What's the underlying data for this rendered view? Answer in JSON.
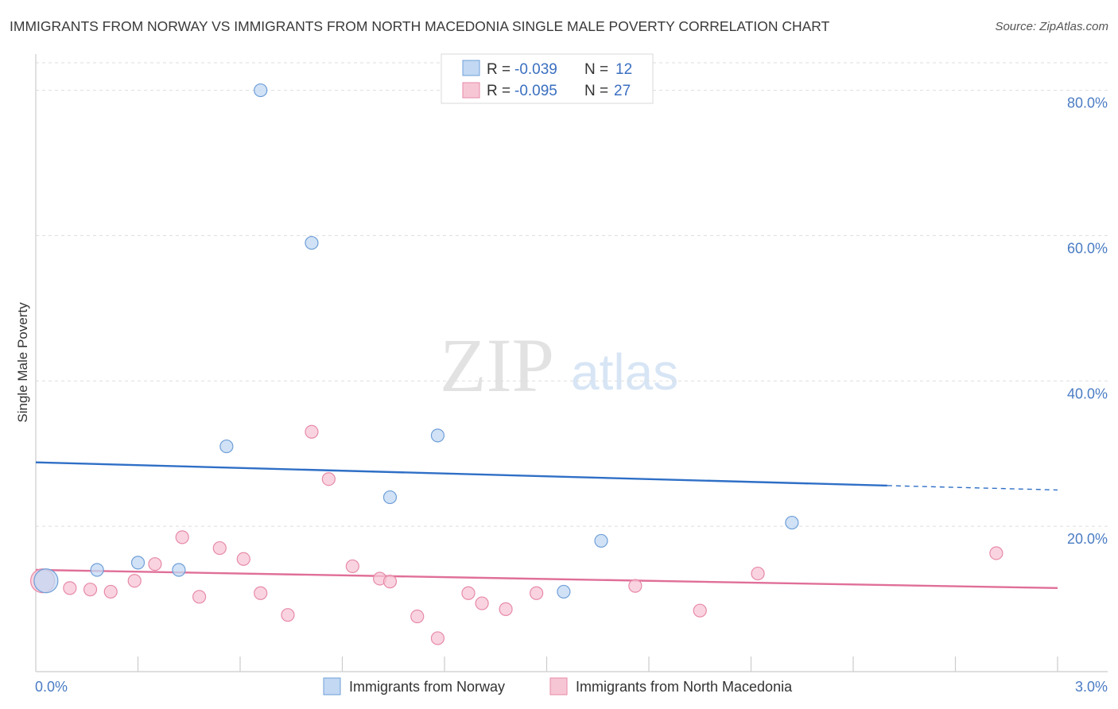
{
  "title": "IMMIGRANTS FROM NORWAY VS IMMIGRANTS FROM NORTH MACEDONIA SINGLE MALE POVERTY CORRELATION CHART",
  "source": "Source: ZipAtlas.com",
  "watermark": {
    "zip": "ZIP",
    "atlas": "atlas"
  },
  "colors": {
    "norway_fill": "#c2d8f3",
    "norway_stroke": "#6f9fd8",
    "norway_line": "#2f6fc6",
    "macedonia_fill": "#f7c6d5",
    "macedonia_stroke": "#e78aa7",
    "macedonia_line": "#e06f98",
    "tick_label": "#4a7cc4",
    "grid": "#dddddd"
  },
  "legend": {
    "rows": [
      {
        "r_label": "R = ",
        "r_value": "-0.039",
        "n_label": "N = ",
        "n_value": "12"
      },
      {
        "r_label": "R = ",
        "r_value": "-0.095",
        "n_label": "N = ",
        "n_value": "27"
      }
    ]
  },
  "chart_data": {
    "type": "scatter",
    "title": "IMMIGRANTS FROM NORWAY VS IMMIGRANTS FROM NORTH MACEDONIA SINGLE MALE POVERTY CORRELATION CHART",
    "xlabel": "",
    "ylabel": "Single Male Poverty",
    "xlim": [
      0,
      3.0
    ],
    "ylim": [
      0,
      84
    ],
    "x_tick_labels": [
      "0.0%",
      "3.0%"
    ],
    "y_ticks": [
      20,
      40,
      60,
      80
    ],
    "y_tick_labels": [
      "20.0%",
      "40.0%",
      "60.0%",
      "80.0%"
    ],
    "grid": true,
    "series": [
      {
        "name": "Immigrants from Norway",
        "points": [
          [
            0.03,
            12.5
          ],
          [
            0.18,
            14
          ],
          [
            0.3,
            15
          ],
          [
            0.42,
            14
          ],
          [
            0.56,
            31
          ],
          [
            0.66,
            80
          ],
          [
            0.81,
            59
          ],
          [
            1.04,
            24
          ],
          [
            1.18,
            32.5
          ],
          [
            1.55,
            11
          ],
          [
            1.66,
            18
          ],
          [
            2.22,
            20.5
          ]
        ],
        "trend": {
          "x0": 0.0,
          "y0": 28.8,
          "x1": 2.5,
          "y1": 25.6,
          "dashed_to_x": 3.0,
          "dashed_to_y": 25.0
        }
      },
      {
        "name": "Immigrants from North Macedonia",
        "points": [
          [
            0.1,
            11.5
          ],
          [
            0.16,
            11.3
          ],
          [
            0.22,
            11
          ],
          [
            0.29,
            12.5
          ],
          [
            0.35,
            14.8
          ],
          [
            0.43,
            18.5
          ],
          [
            0.48,
            10.3
          ],
          [
            0.54,
            17
          ],
          [
            0.61,
            15.5
          ],
          [
            0.66,
            10.8
          ],
          [
            0.74,
            7.8
          ],
          [
            0.81,
            33
          ],
          [
            0.86,
            26.5
          ],
          [
            0.93,
            14.5
          ],
          [
            1.01,
            12.8
          ],
          [
            1.04,
            12.4
          ],
          [
            1.12,
            7.6
          ],
          [
            1.18,
            4.6
          ],
          [
            1.27,
            10.8
          ],
          [
            1.31,
            9.4
          ],
          [
            1.38,
            8.6
          ],
          [
            1.47,
            10.8
          ],
          [
            1.76,
            11.8
          ],
          [
            1.95,
            8.4
          ],
          [
            2.12,
            13.5
          ],
          [
            2.82,
            16.3
          ],
          [
            0.02,
            12.5
          ]
        ],
        "trend": {
          "x0": 0.0,
          "y0": 14.0,
          "x1": 3.0,
          "y1": 11.5
        }
      }
    ]
  },
  "bottom_legend": {
    "norway_label": "Immigrants from Norway",
    "macedonia_label": "Immigrants from North Macedonia"
  }
}
